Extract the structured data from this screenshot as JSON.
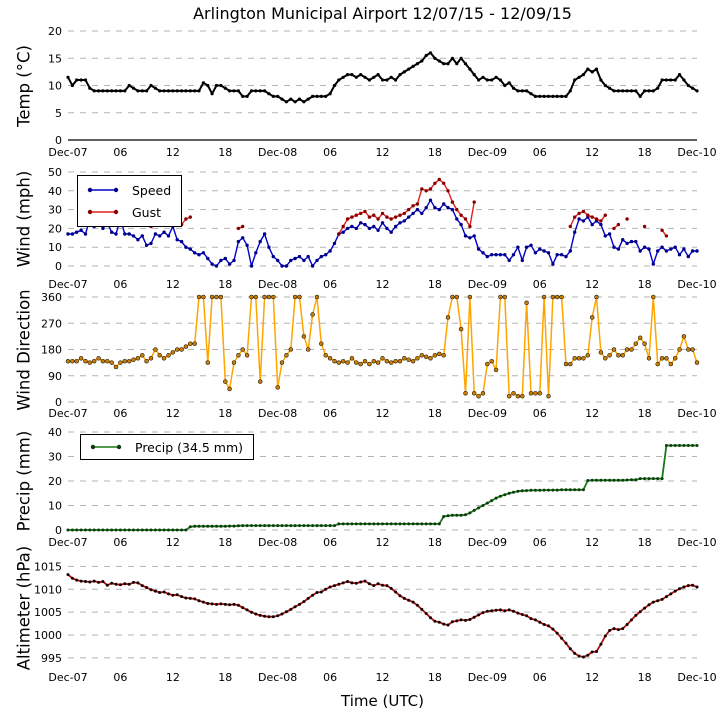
{
  "title": "Arlington Municipal Airport 12/07/15 - 12/09/15",
  "xlabel": "Time (UTC)",
  "x_axis": {
    "tick_positions_hours": [
      0,
      6,
      12,
      18,
      24,
      30,
      36,
      42,
      48,
      54,
      60,
      66,
      72
    ],
    "tick_labels": [
      "Dec-07",
      "06",
      "12",
      "18",
      "Dec-08",
      "06",
      "12",
      "18",
      "Dec-09",
      "06",
      "12",
      "18",
      "Dec-10"
    ]
  },
  "colors": {
    "temp_line": "#000000",
    "speed_line": "#0000cc",
    "speed_marker": "#00008b",
    "gust_line": "#e02020",
    "gust_marker": "#8b0000",
    "direction_line": "#ffa500",
    "direction_marker": "#c87f0a",
    "precip_line": "#1a7a1a",
    "precip_marker": "#0a3d0a",
    "altimeter_line": "#b01010",
    "altimeter_marker": "#140000",
    "grid": "#b3b3b3"
  },
  "chart_data": [
    {
      "type": "line",
      "ylabel": "Temp (°C)",
      "ylim": [
        0,
        20
      ],
      "yticks": [
        0,
        5,
        10,
        15,
        20
      ],
      "x_start_hour": 0,
      "x_step_hours": 0.5,
      "grid": "horizontal-dashed",
      "legend": {
        "show": false
      },
      "series": [
        {
          "name": "Temp",
          "color": "#000000",
          "marker_color": "#000000",
          "values": [
            11.5,
            10,
            11,
            11,
            11,
            9.5,
            9,
            9,
            9,
            9,
            9,
            9,
            9,
            9,
            10,
            9.5,
            9,
            9,
            9,
            10,
            9.5,
            9,
            9,
            9,
            9,
            9,
            9,
            9,
            9,
            9,
            9,
            10.5,
            10,
            8.5,
            10,
            10,
            9.5,
            9,
            9,
            9,
            8,
            8,
            9,
            9,
            9,
            9,
            8.5,
            8,
            8,
            7.5,
            7,
            7.5,
            7,
            7.5,
            7,
            7.5,
            8,
            8,
            8,
            8,
            8.5,
            10,
            11,
            11.5,
            12,
            12,
            11.5,
            12,
            11.5,
            11,
            11.5,
            12,
            11,
            11,
            11.5,
            11,
            12,
            12.5,
            13,
            13.5,
            14,
            14.5,
            15.5,
            16,
            15,
            14.5,
            14,
            14,
            15,
            14,
            15,
            14,
            13,
            12,
            11,
            11.5,
            11,
            11,
            11.5,
            11,
            10,
            10.5,
            9.5,
            9,
            9,
            9,
            8.5,
            8,
            8,
            8,
            8,
            8,
            8,
            8,
            8,
            9,
            11,
            11.5,
            12,
            13,
            12.5,
            13,
            11,
            10,
            9.5,
            9,
            9,
            9,
            9,
            9,
            9,
            8,
            9,
            9,
            9,
            9.5,
            11,
            11,
            11,
            11,
            12,
            11,
            10,
            9.5,
            9
          ]
        }
      ]
    },
    {
      "type": "line",
      "ylabel": "Wind (mph)",
      "ylim": [
        0,
        50
      ],
      "yticks": [
        0,
        10,
        20,
        30,
        40,
        50
      ],
      "x_start_hour": 0,
      "x_step_hours": 0.5,
      "grid": "horizontal-dashed",
      "legend": {
        "show": true,
        "position": "upper-left"
      },
      "series": [
        {
          "name": "Speed",
          "color": "#0000cc",
          "marker_color": "#00008b",
          "values": [
            17,
            17,
            18,
            19,
            17,
            25,
            21,
            25,
            20,
            23,
            18,
            17,
            25,
            17,
            17,
            16,
            14,
            16,
            11,
            12,
            17,
            16,
            18,
            16,
            21,
            14,
            13,
            10,
            9,
            7,
            6,
            7,
            4,
            1,
            0,
            3,
            4,
            1,
            3,
            13,
            15,
            11,
            0,
            7,
            13,
            17,
            10,
            5,
            3,
            0,
            0,
            3,
            4,
            5,
            3,
            5,
            0,
            3,
            5,
            6,
            8,
            12,
            17,
            18,
            20,
            21,
            20,
            23,
            22,
            20,
            21,
            19,
            23,
            20,
            18,
            21,
            23,
            24,
            26,
            28,
            30,
            28,
            31,
            35,
            31,
            30,
            33,
            31,
            30,
            25,
            22,
            16,
            15,
            16,
            9,
            7,
            5,
            6,
            6,
            6,
            6,
            3,
            6,
            10,
            3,
            10,
            11,
            7,
            9,
            8,
            7,
            1,
            6,
            6,
            5,
            8,
            18,
            25,
            24,
            26,
            22,
            24,
            22,
            16,
            17,
            10,
            9,
            14,
            12,
            13,
            13,
            8,
            10,
            9,
            1,
            8,
            10,
            8,
            9,
            10,
            6,
            9,
            5,
            8,
            8
          ]
        },
        {
          "name": "Gust",
          "color": "#e02020",
          "marker_color": "#8b0000",
          "values": [
            null,
            null,
            null,
            null,
            26,
            28,
            26,
            28,
            26,
            28,
            26,
            27,
            28,
            26,
            27,
            25,
            26,
            24,
            null,
            21,
            23,
            25,
            null,
            26,
            26,
            null,
            22,
            25,
            26,
            null,
            null,
            null,
            null,
            null,
            null,
            null,
            null,
            null,
            null,
            20,
            21,
            null,
            null,
            null,
            null,
            null,
            null,
            null,
            null,
            null,
            null,
            null,
            null,
            null,
            null,
            null,
            null,
            null,
            null,
            null,
            null,
            null,
            17,
            21,
            25,
            26,
            27,
            28,
            29,
            26,
            27,
            25,
            28,
            26,
            25,
            26,
            27,
            28,
            30,
            32,
            33,
            41,
            40,
            41,
            44,
            46,
            44,
            40,
            34,
            30,
            27,
            25,
            21,
            34,
            null,
            null,
            null,
            null,
            null,
            null,
            null,
            null,
            null,
            null,
            null,
            null,
            null,
            null,
            null,
            null,
            null,
            null,
            null,
            null,
            null,
            21,
            26,
            28,
            29,
            27,
            26,
            25,
            24,
            27,
            null,
            20,
            22,
            null,
            25,
            null,
            null,
            null,
            21,
            null,
            null,
            null,
            19,
            16,
            null,
            null,
            null,
            null,
            null,
            null,
            null
          ]
        }
      ]
    },
    {
      "type": "line",
      "ylabel": "Wind Direction",
      "ylim": [
        0,
        360
      ],
      "yticks": [
        0,
        90,
        180,
        270,
        360
      ],
      "x_start_hour": 0,
      "x_step_hours": 0.5,
      "grid": "horizontal-dashed",
      "legend": {
        "show": false
      },
      "series": [
        {
          "name": "Wind Direction",
          "color": "#ffa500",
          "marker_color": "#c87f0a",
          "values": [
            140,
            140,
            140,
            150,
            140,
            135,
            140,
            150,
            140,
            140,
            135,
            120,
            135,
            140,
            140,
            145,
            150,
            160,
            140,
            150,
            180,
            160,
            150,
            160,
            170,
            180,
            180,
            190,
            200,
            200,
            360,
            360,
            135,
            360,
            360,
            360,
            70,
            45,
            135,
            160,
            180,
            160,
            360,
            360,
            70,
            360,
            360,
            360,
            50,
            135,
            160,
            180,
            360,
            360,
            225,
            180,
            300,
            360,
            200,
            160,
            150,
            140,
            135,
            140,
            135,
            150,
            135,
            130,
            140,
            130,
            140,
            135,
            150,
            140,
            135,
            140,
            140,
            150,
            145,
            140,
            150,
            160,
            155,
            150,
            160,
            165,
            160,
            290,
            360,
            360,
            250,
            30,
            360,
            30,
            20,
            30,
            130,
            140,
            110,
            360,
            360,
            20,
            30,
            20,
            20,
            340,
            30,
            30,
            30,
            360,
            20,
            360,
            360,
            360,
            130,
            130,
            150,
            150,
            150,
            160,
            290,
            360,
            170,
            150,
            160,
            180,
            160,
            160,
            180,
            180,
            200,
            220,
            200,
            150,
            360,
            130,
            150,
            150,
            130,
            150,
            180,
            225,
            180,
            180,
            135
          ]
        }
      ]
    },
    {
      "type": "line",
      "ylabel": "Precip (mm)",
      "ylim": [
        0,
        40
      ],
      "yticks": [
        0,
        10,
        20,
        30,
        40
      ],
      "x_start_hour": 0,
      "x_step_hours": 0.5,
      "grid": "horizontal-dashed",
      "legend": {
        "show": true,
        "position": "upper-left",
        "total_label": "Precip (34.5 mm)"
      },
      "series": [
        {
          "name": "Precip (34.5 mm)",
          "color": "#1a7a1a",
          "marker_color": "#0a3d0a",
          "values": [
            0,
            0,
            0,
            0,
            0,
            0,
            0,
            0,
            0,
            0,
            0,
            0,
            0,
            0,
            0,
            0,
            0,
            0,
            0,
            0,
            0,
            0,
            0,
            0,
            0,
            0,
            0,
            0,
            1.3,
            1.5,
            1.5,
            1.5,
            1.5,
            1.5,
            1.5,
            1.5,
            1.5,
            1.6,
            1.6,
            1.7,
            1.8,
            1.8,
            1.8,
            1.8,
            1.8,
            1.8,
            1.8,
            1.8,
            1.8,
            1.8,
            1.8,
            1.8,
            1.8,
            1.8,
            1.8,
            1.8,
            1.8,
            1.8,
            1.8,
            1.8,
            1.8,
            1.8,
            2.5,
            2.5,
            2.5,
            2.5,
            2.5,
            2.5,
            2.5,
            2.5,
            2.5,
            2.5,
            2.5,
            2.5,
            2.5,
            2.5,
            2.5,
            2.5,
            2.5,
            2.5,
            2.5,
            2.5,
            2.5,
            2.5,
            2.5,
            2.5,
            5.5,
            5.8,
            6,
            6,
            6,
            6.2,
            7,
            8,
            9,
            10,
            11,
            12,
            13,
            13.8,
            14.4,
            15,
            15.4,
            15.8,
            16,
            16.1,
            16.2,
            16.2,
            16.2,
            16.3,
            16.3,
            16.3,
            16.3,
            16.4,
            16.4,
            16.4,
            16.4,
            16.4,
            16.4,
            20.2,
            20.3,
            20.3,
            20.3,
            20.3,
            20.3,
            20.3,
            20.3,
            20.3,
            20.4,
            20.5,
            20.5,
            21,
            21,
            21,
            21,
            21,
            21,
            34.5,
            34.5,
            34.5,
            34.5,
            34.5,
            34.5,
            34.5,
            34.5
          ]
        }
      ]
    },
    {
      "type": "line",
      "ylabel": "Altimeter (hPa)",
      "ylim": [
        992.8,
        1016.4
      ],
      "yticks": [
        995,
        1000,
        1005,
        1010,
        1015
      ],
      "x_start_hour": 0,
      "x_step_hours": 0.5,
      "grid": "horizontal-dashed",
      "legend": {
        "show": false
      },
      "series": [
        {
          "name": "Altimeter",
          "color": "#b01010",
          "marker_color": "#140000",
          "values": [
            1013.2,
            1012.4,
            1012,
            1011.8,
            1011.7,
            1011.6,
            1011.8,
            1011.5,
            1011.7,
            1010.9,
            1011.3,
            1011.1,
            1011,
            1011.2,
            1011.1,
            1011.5,
            1011.4,
            1010.8,
            1010.4,
            1009.9,
            1009.6,
            1009.3,
            1009.4,
            1009,
            1008.7,
            1008.8,
            1008.4,
            1008.1,
            1008,
            1007.9,
            1007.5,
            1007.2,
            1006.9,
            1006.8,
            1006.7,
            1006.8,
            1006.7,
            1006.6,
            1006.7,
            1006.5,
            1006,
            1005.5,
            1005,
            1004.6,
            1004.3,
            1004.1,
            1004,
            1004,
            1004.2,
            1004.6,
            1005.1,
            1005.6,
            1006.2,
            1006.7,
            1007.3,
            1008,
            1008.7,
            1009.3,
            1009.4,
            1010,
            1010.5,
            1010.8,
            1011.1,
            1011.4,
            1011.7,
            1011.4,
            1011.3,
            1011.6,
            1011.8,
            1011.2,
            1010.8,
            1011.2,
            1010.9,
            1010.8,
            1010.2,
            1009.4,
            1008.6,
            1008,
            1007.6,
            1007.2,
            1006.5,
            1005.6,
            1004.7,
            1003.8,
            1003,
            1002.8,
            1002.4,
            1002.2,
            1002.9,
            1003.1,
            1003.3,
            1003.2,
            1003.4,
            1003.9,
            1004.4,
            1004.9,
            1005.2,
            1005.3,
            1005.4,
            1005.5,
            1005.3,
            1005.5,
            1005.2,
            1004.8,
            1004.5,
            1004.2,
            1003.6,
            1003.3,
            1002.8,
            1002.3,
            1002,
            1001.3,
            1000.4,
            999.3,
            998.2,
            997,
            996,
            995.4,
            995.2,
            995.6,
            996.3,
            996.4,
            998,
            999.8,
            1001,
            1001.4,
            1001.2,
            1001.4,
            1002.3,
            1003.3,
            1004.3,
            1005.1,
            1005.9,
            1006.6,
            1007.2,
            1007.5,
            1007.8,
            1008.4,
            1009,
            1009.6,
            1010.1,
            1010.5,
            1010.8,
            1010.9,
            1010.5
          ]
        }
      ]
    }
  ]
}
